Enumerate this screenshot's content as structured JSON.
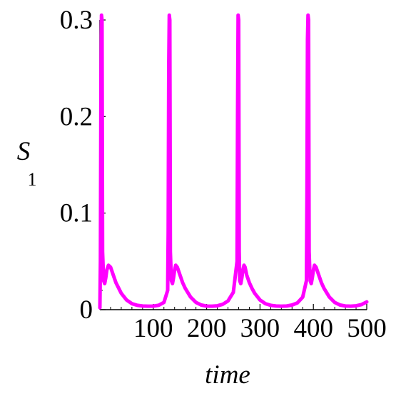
{
  "chart_data": {
    "type": "line",
    "title": "",
    "xlabel": "time",
    "ylabel": {
      "main": "S",
      "subscript": "1"
    },
    "xlim": [
      0,
      500
    ],
    "ylim": [
      0,
      0.3
    ],
    "x_ticks": [
      {
        "value": 100,
        "label": "100"
      },
      {
        "value": 200,
        "label": "200"
      },
      {
        "value": 300,
        "label": "300"
      },
      {
        "value": 400,
        "label": "400"
      },
      {
        "value": 500,
        "label": "500"
      }
    ],
    "y_ticks": [
      {
        "value": 0,
        "label": "0"
      },
      {
        "value": 0.1,
        "label": "0.1"
      },
      {
        "value": 0.2,
        "label": "0.2"
      },
      {
        "value": 0.3,
        "label": "0.3"
      }
    ],
    "grid": false,
    "legend": "none",
    "series": [
      {
        "color": "#ff00ff",
        "x": [
          0,
          1,
          2,
          3,
          4,
          5,
          7,
          9,
          11,
          13,
          16,
          20,
          25,
          30,
          40,
          50,
          60,
          70,
          80,
          90,
          100,
          110,
          120,
          127,
          128,
          129,
          130,
          131,
          132,
          134,
          136,
          138,
          140,
          142,
          145,
          150,
          155,
          160,
          170,
          180,
          190,
          200,
          210,
          220,
          230,
          240,
          250,
          257,
          258,
          259,
          260,
          261,
          262,
          264,
          266,
          268,
          270,
          272,
          275,
          280,
          285,
          290,
          300,
          310,
          320,
          330,
          340,
          350,
          360,
          370,
          380,
          387,
          388,
          389,
          390,
          391,
          392,
          394,
          396,
          398,
          400,
          402,
          405,
          410,
          415,
          420,
          430,
          440,
          450,
          460,
          470,
          480,
          490,
          500
        ],
        "y": [
          0.002,
          0.05,
          0.24,
          0.305,
          0.3,
          0.06,
          0.03,
          0.027,
          0.033,
          0.041,
          0.046,
          0.044,
          0.036,
          0.028,
          0.017,
          0.01,
          0.0062,
          0.0045,
          0.0038,
          0.0036,
          0.0037,
          0.0045,
          0.0075,
          0.02,
          0.08,
          0.25,
          0.305,
          0.3,
          0.06,
          0.03,
          0.027,
          0.033,
          0.041,
          0.046,
          0.044,
          0.036,
          0.028,
          0.022,
          0.013,
          0.0075,
          0.0048,
          0.0037,
          0.0036,
          0.004,
          0.0055,
          0.009,
          0.018,
          0.05,
          0.2,
          0.305,
          0.3,
          0.06,
          0.03,
          0.027,
          0.033,
          0.041,
          0.046,
          0.044,
          0.036,
          0.028,
          0.022,
          0.017,
          0.01,
          0.0062,
          0.0045,
          0.0038,
          0.0036,
          0.0038,
          0.0048,
          0.007,
          0.013,
          0.03,
          0.12,
          0.28,
          0.305,
          0.3,
          0.06,
          0.03,
          0.027,
          0.033,
          0.041,
          0.046,
          0.044,
          0.036,
          0.028,
          0.022,
          0.013,
          0.0075,
          0.0048,
          0.0038,
          0.0036,
          0.004,
          0.0052,
          0.008
        ]
      }
    ]
  }
}
